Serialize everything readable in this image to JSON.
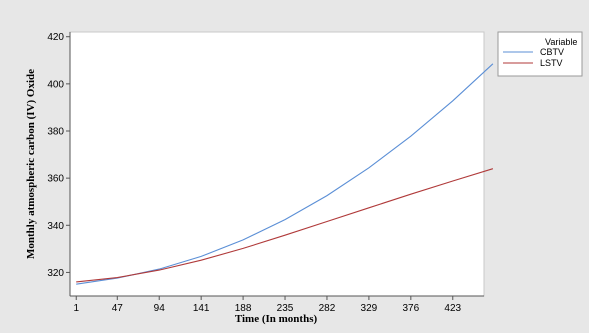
{
  "chart_data": {
    "type": "line",
    "xlabel": "Time (In months)",
    "ylabel": "Monthly atmospheric carbon (IV) Oxide",
    "x_ticks": [
      1,
      47,
      94,
      141,
      188,
      235,
      282,
      329,
      376,
      423
    ],
    "y_ticks": [
      320,
      340,
      360,
      380,
      400,
      420
    ],
    "xlim": [
      -6,
      458
    ],
    "ylim": [
      310,
      422
    ],
    "grid": false,
    "legend_title": "Variable",
    "legend_position": "right",
    "x": [
      1,
      47,
      94,
      141,
      188,
      235,
      282,
      329,
      376,
      423,
      468
    ],
    "series": [
      {
        "name": "CBTV",
        "color": "#5b8fd6",
        "values": [
          315.0,
          317.6,
          321.4,
          326.8,
          333.8,
          342.4,
          352.6,
          364.4,
          377.8,
          392.8,
          408.5
        ]
      },
      {
        "name": "LSTV",
        "color": "#b03a3a",
        "values": [
          316.0,
          317.8,
          321.0,
          325.2,
          330.2,
          335.8,
          341.6,
          347.4,
          353.2,
          358.8,
          364.0
        ]
      }
    ]
  }
}
